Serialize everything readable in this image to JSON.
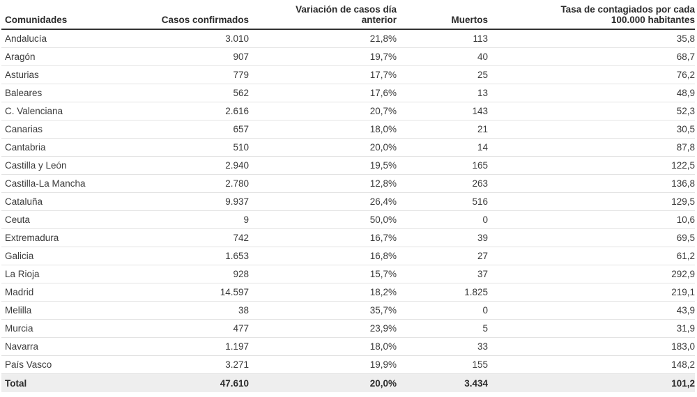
{
  "chart_data": {
    "type": "table",
    "columns": [
      "Comunidades",
      "Casos confirmados",
      "Variación de casos día anterior",
      "Muertos",
      "Tasa de contagiados por cada 100.000 habitantes"
    ],
    "rows": [
      [
        "Andalucía",
        "3.010",
        "21,8%",
        "113",
        "35,8"
      ],
      [
        "Aragón",
        "907",
        "19,7%",
        "40",
        "68,7"
      ],
      [
        "Asturias",
        "779",
        "17,7%",
        "25",
        "76,2"
      ],
      [
        "Baleares",
        "562",
        "17,6%",
        "13",
        "48,9"
      ],
      [
        "C. Valenciana",
        "2.616",
        "20,7%",
        "143",
        "52,3"
      ],
      [
        "Canarias",
        "657",
        "18,0%",
        "21",
        "30,5"
      ],
      [
        "Cantabria",
        "510",
        "20,0%",
        "14",
        "87,8"
      ],
      [
        "Castilla y León",
        "2.940",
        "19,5%",
        "165",
        "122,5"
      ],
      [
        "Castilla-La Mancha",
        "2.780",
        "12,8%",
        "263",
        "136,8"
      ],
      [
        "Cataluña",
        "9.937",
        "26,4%",
        "516",
        "129,5"
      ],
      [
        "Ceuta",
        "9",
        "50,0%",
        "0",
        "10,6"
      ],
      [
        "Extremadura",
        "742",
        "16,7%",
        "39",
        "69,5"
      ],
      [
        "Galicia",
        "1.653",
        "16,8%",
        "27",
        "61,2"
      ],
      [
        "La Rioja",
        "928",
        "15,7%",
        "37",
        "292,9"
      ],
      [
        "Madrid",
        "14.597",
        "18,2%",
        "1.825",
        "219,1"
      ],
      [
        "Melilla",
        "38",
        "35,7%",
        "0",
        "43,9"
      ],
      [
        "Murcia",
        "477",
        "23,9%",
        "5",
        "31,9"
      ],
      [
        "Navarra",
        "1.197",
        "18,0%",
        "33",
        "183,0"
      ],
      [
        "País Vasco",
        "3.271",
        "19,9%",
        "155",
        "148,2"
      ]
    ],
    "total": [
      "Total",
      "47.610",
      "20,0%",
      "3.434",
      "101,2"
    ]
  }
}
